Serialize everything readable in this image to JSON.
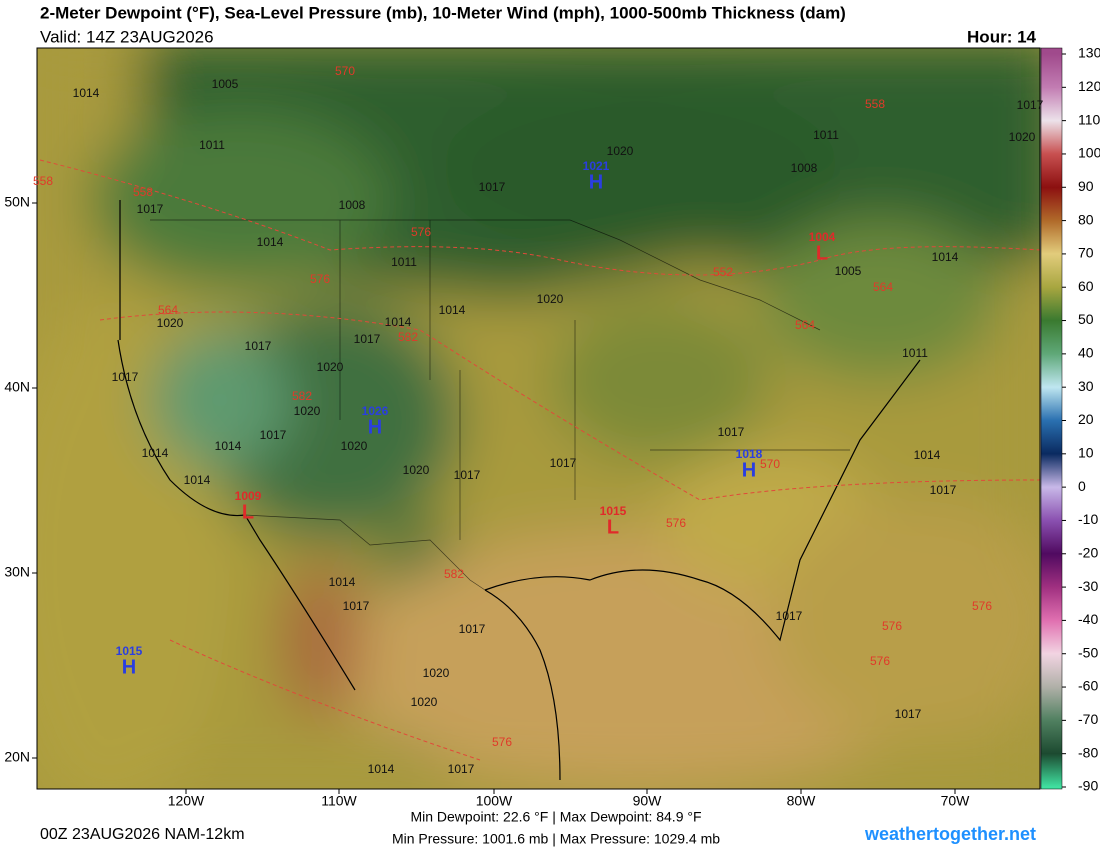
{
  "header": {
    "title": "2-Meter Dewpoint (°F), Sea-Level Pressure (mb), 10-Meter Wind (mph), 1000-500mb Thickness (dam)",
    "valid": "Valid: 14Z 23AUG2026",
    "hour": "Hour: 14"
  },
  "map": {
    "lat_labels": [
      "50N",
      "40N",
      "30N",
      "20N"
    ],
    "lon_labels": [
      "120W",
      "110W",
      "100W",
      "90W",
      "80W",
      "70W"
    ],
    "pressure_centers": [
      {
        "symbol": "H",
        "value": 1021
      },
      {
        "symbol": "H",
        "value": 1015
      },
      {
        "symbol": "H",
        "value": 1026
      },
      {
        "symbol": "H",
        "value": 1018
      },
      {
        "symbol": "L",
        "value": 1009
      },
      {
        "symbol": "L",
        "value": 1015
      },
      {
        "symbol": "L",
        "value": 1004
      }
    ],
    "isobar_labels": [
      1014,
      1005,
      1011,
      1017,
      1008,
      1017,
      1020,
      1011,
      1008,
      1017,
      1020,
      1014,
      1011,
      1005,
      1014,
      1020,
      1017,
      1014,
      1014,
      1020,
      1017,
      1020,
      1017,
      1020,
      1017,
      1014,
      1014,
      1014,
      1020,
      1020,
      1017,
      1017,
      1017,
      1014,
      1017,
      1011,
      1014,
      1017,
      1017,
      1017,
      1020,
      1020,
      1014,
      1017,
      1017
    ],
    "thickness_labels": [
      570,
      558,
      558,
      558,
      576,
      576,
      564,
      552,
      564,
      564,
      582,
      582,
      570,
      576,
      582,
      576,
      576,
      576,
      576
    ]
  },
  "colorbar": {
    "ticks": [
      130,
      120,
      110,
      100,
      90,
      80,
      70,
      60,
      50,
      40,
      30,
      20,
      10,
      0,
      -10,
      -20,
      -30,
      -40,
      -50,
      -60,
      -70,
      -80,
      -90
    ],
    "colors": [
      "#a04a8c",
      "#c27cb2",
      "#ece2ea",
      "#c85050",
      "#8c1010",
      "#b06a2a",
      "#e2cc7c",
      "#a8a640",
      "#3a7a30",
      "#5fa878",
      "#bfe6f0",
      "#2a70b0",
      "#0a2a60",
      "#c8b8e8",
      "#8a50b0",
      "#500a60",
      "#a03080",
      "#e070b0",
      "#f2d4e2",
      "#b0b0a8",
      "#508060",
      "#1c4a30",
      "#40e0a0"
    ]
  },
  "footer": {
    "run": "00Z 23AUG2026 NAM-12km",
    "stats_line1": "Min Dewpoint:  22.6 °F | Max Dewpoint:  84.9 °F",
    "stats_line2": "Min Pressure: 1001.6 mb | Max Pressure: 1029.4 mb",
    "site": "weathertogether.net"
  }
}
